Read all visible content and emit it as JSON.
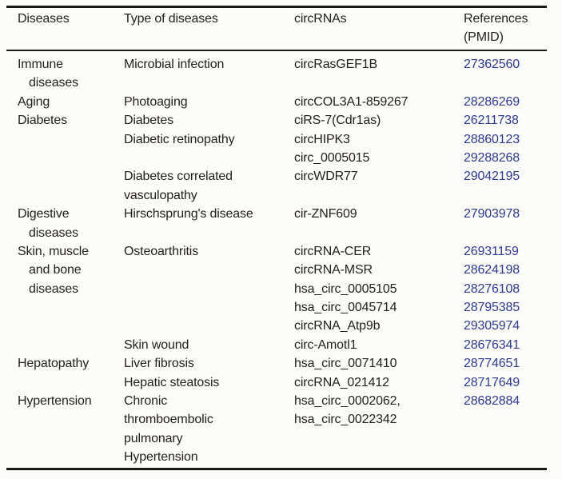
{
  "table": {
    "columns": [
      {
        "label": "Diseases"
      },
      {
        "label": "Type of diseases"
      },
      {
        "label": "circRNAs"
      },
      {
        "label": "References",
        "label2": "(PMID)"
      }
    ],
    "rows": [
      {
        "disease": "Immune",
        "indent": false,
        "type": "Microbial infection",
        "circrna": "circRasGEF1B",
        "pmid": "27362560"
      },
      {
        "disease": "diseases",
        "indent": true,
        "type": "",
        "circrna": "",
        "pmid": ""
      },
      {
        "disease": "Aging",
        "indent": false,
        "type": "Photoaging",
        "circrna": "circCOL3A1-859267",
        "pmid": "28286269"
      },
      {
        "disease": "Diabetes",
        "indent": false,
        "type": "Diabetes",
        "circrna": "ciRS-7(Cdr1as)",
        "pmid": "26211738"
      },
      {
        "disease": "",
        "indent": false,
        "type": "Diabetic retinopathy",
        "circrna": "circHIPK3",
        "pmid": "28860123"
      },
      {
        "disease": "",
        "indent": false,
        "type": "",
        "circrna": "circ_0005015",
        "pmid": "29288268"
      },
      {
        "disease": "",
        "indent": false,
        "type": "Diabetes correlated",
        "circrna": "circWDR77",
        "pmid": "29042195"
      },
      {
        "disease": "",
        "indent": false,
        "type": "vasculopathy",
        "circrna": "",
        "pmid": ""
      },
      {
        "disease": "Digestive",
        "indent": false,
        "type": "Hirschsprung's disease",
        "circrna": "cir-ZNF609",
        "pmid": "27903978"
      },
      {
        "disease": "diseases",
        "indent": true,
        "type": "",
        "circrna": "",
        "pmid": ""
      },
      {
        "disease": "Skin, muscle",
        "indent": false,
        "type": "Osteoarthritis",
        "circrna": "circRNA-CER",
        "pmid": "26931159"
      },
      {
        "disease": "and bone",
        "indent": true,
        "type": "",
        "circrna": "circRNA-MSR",
        "pmid": "28624198"
      },
      {
        "disease": "diseases",
        "indent": true,
        "type": "",
        "circrna": "hsa_circ_0005105",
        "pmid": "28276108"
      },
      {
        "disease": "",
        "indent": false,
        "type": "",
        "circrna": "hsa_circ_0045714",
        "pmid": "28795385"
      },
      {
        "disease": "",
        "indent": false,
        "type": "",
        "circrna": "circRNA_Atp9b",
        "pmid": "29305974"
      },
      {
        "disease": "",
        "indent": false,
        "type": "Skin wound",
        "circrna": "circ-Amotl1",
        "pmid": "28676341"
      },
      {
        "disease": "Hepatopathy",
        "indent": false,
        "type": "Liver fibrosis",
        "circrna": "hsa_circ_0071410",
        "pmid": "28774651"
      },
      {
        "disease": "",
        "indent": false,
        "type": "Hepatic steatosis",
        "circrna": "circRNA_021412",
        "pmid": "28717649"
      },
      {
        "disease": "Hypertension",
        "indent": false,
        "type": "Chronic",
        "circrna": "hsa_circ_0002062,",
        "pmid": "28682884"
      },
      {
        "disease": "",
        "indent": false,
        "type": "thromboembolic",
        "circrna": "hsa_circ_0022342",
        "pmid": ""
      },
      {
        "disease": "",
        "indent": false,
        "type": "pulmonary",
        "circrna": "",
        "pmid": ""
      },
      {
        "disease": "",
        "indent": false,
        "type": "Hypertension",
        "circrna": "",
        "pmid": ""
      }
    ],
    "colors": {
      "text": "#22211f",
      "link": "#2e3a8c",
      "rule": "#191918",
      "background": "#fcfcfa"
    }
  }
}
